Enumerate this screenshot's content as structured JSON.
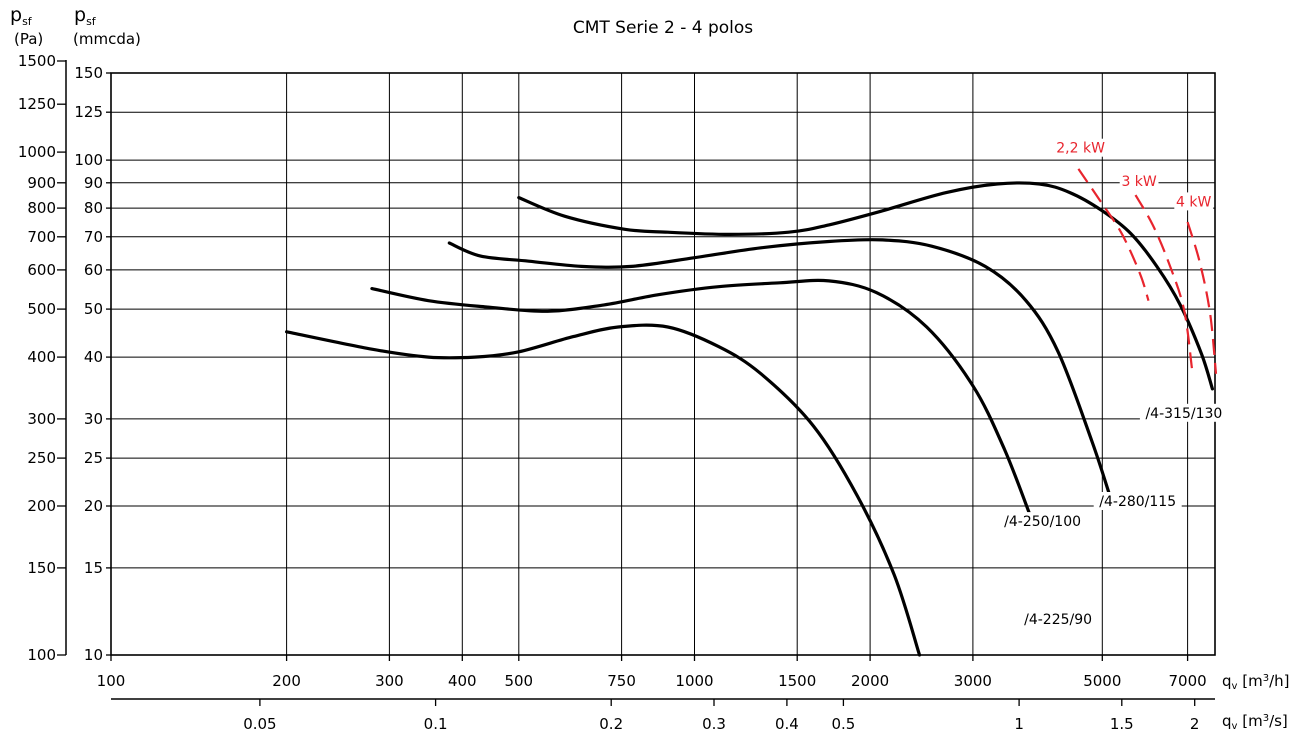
{
  "chart_data": {
    "type": "line",
    "title": "CMT Serie 2 - 4 polos",
    "x_scale": "log",
    "y_scale": "log",
    "grid": true,
    "xlim_m3h": [
      100,
      7800
    ],
    "ylim_mmcda": [
      10,
      150
    ],
    "y_axis_left": {
      "symbol": "p",
      "sub": "sf",
      "unit": "(Pa)",
      "ticks": [
        100,
        150,
        200,
        250,
        300,
        400,
        500,
        600,
        700,
        800,
        900,
        1000,
        1250,
        1500
      ]
    },
    "y_axis_right": {
      "symbol": "p",
      "sub": "sf",
      "unit": "(mmcda)",
      "ticks": [
        10,
        15,
        20,
        25,
        30,
        40,
        50,
        60,
        70,
        80,
        90,
        100,
        125,
        150
      ]
    },
    "x_axis_top": {
      "symbol": "q",
      "sub": "v",
      "unit_text": " [m",
      "unit_sup": "3",
      "unit_end": "/h]",
      "ticks": [
        100,
        200,
        300,
        400,
        500,
        750,
        1000,
        1500,
        2000,
        3000,
        5000,
        7000
      ]
    },
    "x_axis_bottom": {
      "symbol": "q",
      "sub": "v",
      "unit_text": " [m",
      "unit_sup": "3",
      "unit_end": "/s]",
      "ticks": [
        0.05,
        0.1,
        0.2,
        0.3,
        0.4,
        0.5,
        1,
        1.5,
        2
      ]
    },
    "series": [
      {
        "name": "/4-225/90",
        "label_pos_m3h": 4200,
        "label_pos_mmcda": 11.6,
        "points": [
          [
            200,
            45
          ],
          [
            280,
            41.5
          ],
          [
            350,
            40
          ],
          [
            420,
            40
          ],
          [
            500,
            41
          ],
          [
            620,
            44
          ],
          [
            740,
            46
          ],
          [
            900,
            46
          ],
          [
            1100,
            42
          ],
          [
            1300,
            37
          ],
          [
            1600,
            29
          ],
          [
            1900,
            21
          ],
          [
            2200,
            14.5
          ],
          [
            2430,
            10
          ]
        ]
      },
      {
        "name": "/4-250/100",
        "label_pos_m3h": 3950,
        "label_pos_mmcda": 18.3,
        "points": [
          [
            280,
            55
          ],
          [
            350,
            52
          ],
          [
            440,
            50.5
          ],
          [
            560,
            49.5
          ],
          [
            700,
            51
          ],
          [
            870,
            53.5
          ],
          [
            1100,
            55.5
          ],
          [
            1400,
            56.5
          ],
          [
            1700,
            57
          ],
          [
            2050,
            54
          ],
          [
            2500,
            46
          ],
          [
            3000,
            35
          ],
          [
            3400,
            26
          ],
          [
            3770,
            19
          ]
        ]
      },
      {
        "name": "/4-280/115",
        "label_pos_m3h": 5750,
        "label_pos_mmcda": 20.1,
        "points": [
          [
            380,
            68
          ],
          [
            430,
            64
          ],
          [
            520,
            62.5
          ],
          [
            640,
            61
          ],
          [
            780,
            61
          ],
          [
            1000,
            63.5
          ],
          [
            1300,
            66.5
          ],
          [
            1700,
            68.5
          ],
          [
            2100,
            69
          ],
          [
            2550,
            67
          ],
          [
            3150,
            61
          ],
          [
            3700,
            52
          ],
          [
            4200,
            41
          ],
          [
            4800,
            27
          ],
          [
            5150,
            21
          ]
        ]
      },
      {
        "name": "/4-315/130",
        "label_pos_m3h": 6900,
        "label_pos_mmcda": 30.3,
        "points": [
          [
            500,
            84
          ],
          [
            600,
            77
          ],
          [
            760,
            72.5
          ],
          [
            900,
            71.5
          ],
          [
            1150,
            70.8
          ],
          [
            1450,
            71.5
          ],
          [
            1700,
            74
          ],
          [
            2100,
            79
          ],
          [
            2700,
            86
          ],
          [
            3300,
            89.5
          ],
          [
            3900,
            89.5
          ],
          [
            4400,
            86
          ],
          [
            5000,
            79
          ],
          [
            5600,
            71
          ],
          [
            6200,
            61
          ],
          [
            6800,
            51
          ],
          [
            7400,
            40.5
          ],
          [
            7720,
            34.5
          ]
        ]
      }
    ],
    "power_curves": [
      {
        "name": "2,2 kW",
        "label_pos_m3h": 4590,
        "label_pos_mmcda": 104,
        "points": [
          [
            4550,
            96
          ],
          [
            4950,
            83
          ],
          [
            5400,
            71
          ],
          [
            5800,
            59
          ],
          [
            6000,
            52
          ]
        ]
      },
      {
        "name": "3 kW",
        "label_pos_m3h": 5780,
        "label_pos_mmcda": 89,
        "points": [
          [
            5700,
            85
          ],
          [
            6100,
            74
          ],
          [
            6500,
            62
          ],
          [
            6900,
            50
          ],
          [
            7120,
            38
          ]
        ]
      },
      {
        "name": "4 kW",
        "label_pos_m3h": 7170,
        "label_pos_mmcda": 81,
        "points": [
          [
            7000,
            75
          ],
          [
            7350,
            62
          ],
          [
            7650,
            49
          ],
          [
            7830,
            37
          ]
        ]
      }
    ]
  }
}
